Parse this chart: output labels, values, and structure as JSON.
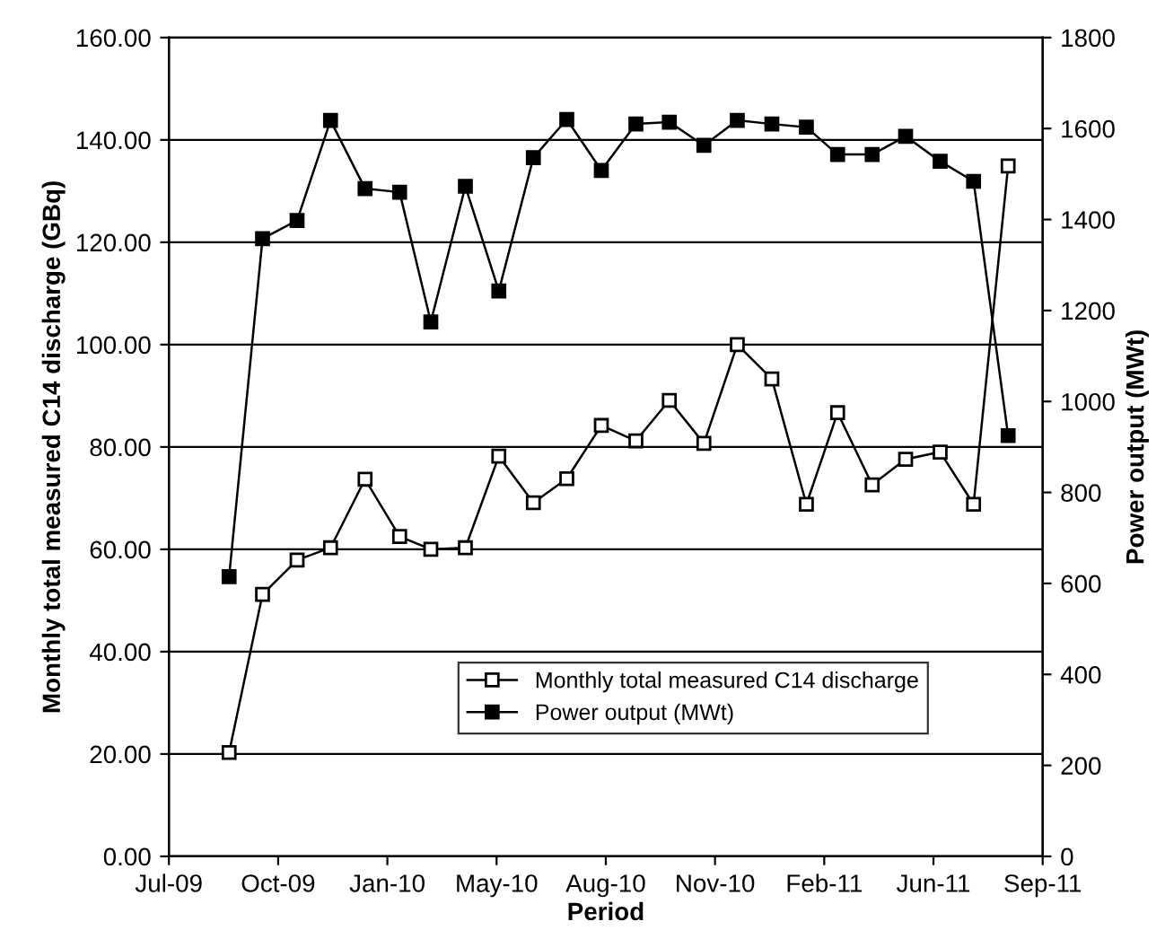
{
  "chart_data": {
    "type": "line",
    "xlabel": "Period",
    "ylabel": "Monthly total measured C14 discharge (GBq)",
    "y2label": "Power output (MWt)",
    "x": [
      "2009-09-07",
      "2009-10-07",
      "2009-11-07",
      "2009-12-07",
      "2010-01-07",
      "2010-02-07",
      "2010-03-07",
      "2010-04-07",
      "2010-05-07",
      "2010-06-07",
      "2010-07-07",
      "2010-08-07",
      "2010-09-07",
      "2010-10-07",
      "2010-11-07",
      "2010-12-07",
      "2011-01-07",
      "2011-02-07",
      "2011-03-07",
      "2011-04-07",
      "2011-05-07",
      "2011-06-07",
      "2011-07-07",
      "2011-08-07"
    ],
    "series": [
      {
        "name": "Monthly total measured C14 discharge",
        "color": "#000000",
        "marker": "square",
        "values": [
          20.3,
          51.2,
          57.9,
          60.3,
          73.7,
          62.5,
          60.0,
          60.3,
          78.2,
          69.1,
          73.8,
          84.2,
          81.2,
          89.1,
          80.7,
          100.0,
          93.3,
          68.8,
          86.7,
          72.6,
          77.6,
          79.0,
          68.8,
          134.9
        ]
      },
      {
        "name": "Power output (MWt)",
        "color": "#000000",
        "marker": "square",
        "axis": "y2",
        "values": [
          615,
          1358,
          1398,
          1618,
          1468,
          1460,
          1175,
          1473,
          1243,
          1536,
          1620,
          1508,
          1610,
          1614,
          1563,
          1618,
          1610,
          1603,
          1543,
          1543,
          1583,
          1528,
          1484,
          925
        ]
      }
    ],
    "xlim": [
      "2009-07-15",
      "2011-09-07"
    ],
    "xticks": [
      {
        "value": "2009-07-15",
        "label": "Jul-09"
      },
      {
        "value": "2009-10-21",
        "label": "Oct-09"
      },
      {
        "value": "2010-01-27",
        "label": "Jan-10"
      },
      {
        "value": "2010-05-05",
        "label": "May-10"
      },
      {
        "value": "2010-08-11",
        "label": "Aug-10"
      },
      {
        "value": "2010-11-17",
        "label": "Nov-10"
      },
      {
        "value": "2011-02-23",
        "label": "Feb-11"
      },
      {
        "value": "2011-06-01",
        "label": "Jun-11"
      },
      {
        "value": "2011-09-07",
        "label": "Sep-11"
      }
    ],
    "ylim": [
      0,
      160
    ],
    "yticks": [
      {
        "value": 0,
        "label": "0.00"
      },
      {
        "value": 20,
        "label": "20.00"
      },
      {
        "value": 40,
        "label": "40.00"
      },
      {
        "value": 60,
        "label": "60.00"
      },
      {
        "value": 80,
        "label": "80.00"
      },
      {
        "value": 100,
        "label": "100.00"
      },
      {
        "value": 120,
        "label": "120.00"
      },
      {
        "value": 140,
        "label": "140.00"
      },
      {
        "value": 160,
        "label": "160.00"
      }
    ],
    "y2lim": [
      0,
      1800
    ],
    "y2ticks": [
      0,
      200,
      400,
      600,
      800,
      1000,
      1200,
      1400,
      1600,
      1800
    ],
    "grid": "y",
    "legend": "bottom",
    "line_style": "solid"
  }
}
